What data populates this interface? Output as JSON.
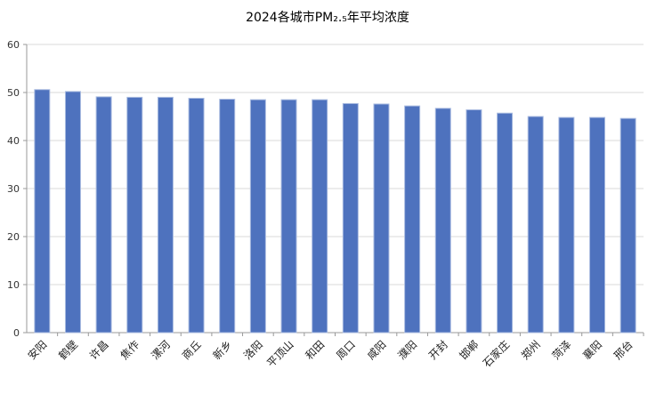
{
  "chart_data": {
    "type": "bar",
    "title": "2024各城市PM₂.₅年平均浓度",
    "xlabel": "",
    "ylabel": "",
    "ylim": [
      0,
      60
    ],
    "yticks": [
      0,
      10,
      20,
      30,
      40,
      50,
      60
    ],
    "grid": true,
    "color": "#4e72be",
    "categories": [
      "安阳",
      "鹤壁",
      "许昌",
      "焦作",
      "漯河",
      "商丘",
      "新乡",
      "洛阳",
      "平顶山",
      "和田",
      "周口",
      "咸阳",
      "濮阳",
      "开封",
      "邯郸",
      "石家庄",
      "郑州",
      "菏泽",
      "襄阳",
      "邢台"
    ],
    "values": [
      50.6,
      50.2,
      49.1,
      49.0,
      49.0,
      48.8,
      48.6,
      48.5,
      48.5,
      48.5,
      47.7,
      47.6,
      47.2,
      46.7,
      46.4,
      45.7,
      45.0,
      44.8,
      44.8,
      44.6
    ]
  }
}
